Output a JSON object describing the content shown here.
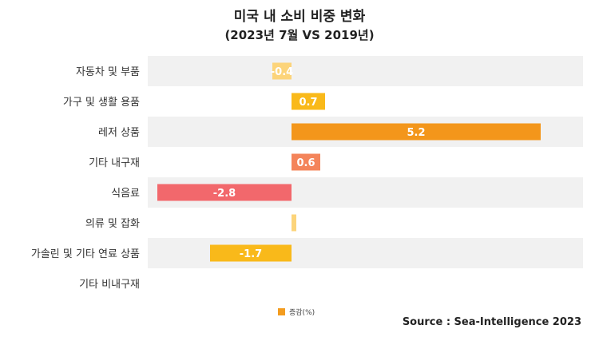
{
  "chart_data": {
    "type": "bar",
    "orientation": "horizontal",
    "title": "미국 내 소비 비중 변화",
    "subtitle": "(2023년 7월 VS 2019년)",
    "categories": [
      "자동차 및 부품",
      "가구 및 생활 용품",
      "레저 상품",
      "기타 내구재",
      "식음료",
      "의류 및 잡화",
      "가솔린 및 기타 연료 상품",
      "기타 비내구재"
    ],
    "series": [
      {
        "name": "증감(%)",
        "values": [
          -0.4,
          0.7,
          5.2,
          0.6,
          -2.8,
          0.1,
          -1.7,
          0
        ],
        "labels": [
          "-0.4",
          "0.7",
          "5.2",
          "0.6",
          "-2.8",
          "",
          "-1.7",
          ""
        ],
        "colors": [
          "#fcd47a",
          "#f9b91a",
          "#f3961b",
          "#f4845a",
          "#f2686c",
          "#fcd47a",
          "#f9b91a",
          "#f3961b"
        ]
      }
    ],
    "xlim": [
      -3,
      6
    ],
    "grid": false,
    "legend_position": "bottom",
    "row_band_color": "#f1f1f1"
  },
  "legend": {
    "label": "증감(%)",
    "color": "#f39c1f"
  },
  "source": "Source : Sea-Intelligence 2023"
}
